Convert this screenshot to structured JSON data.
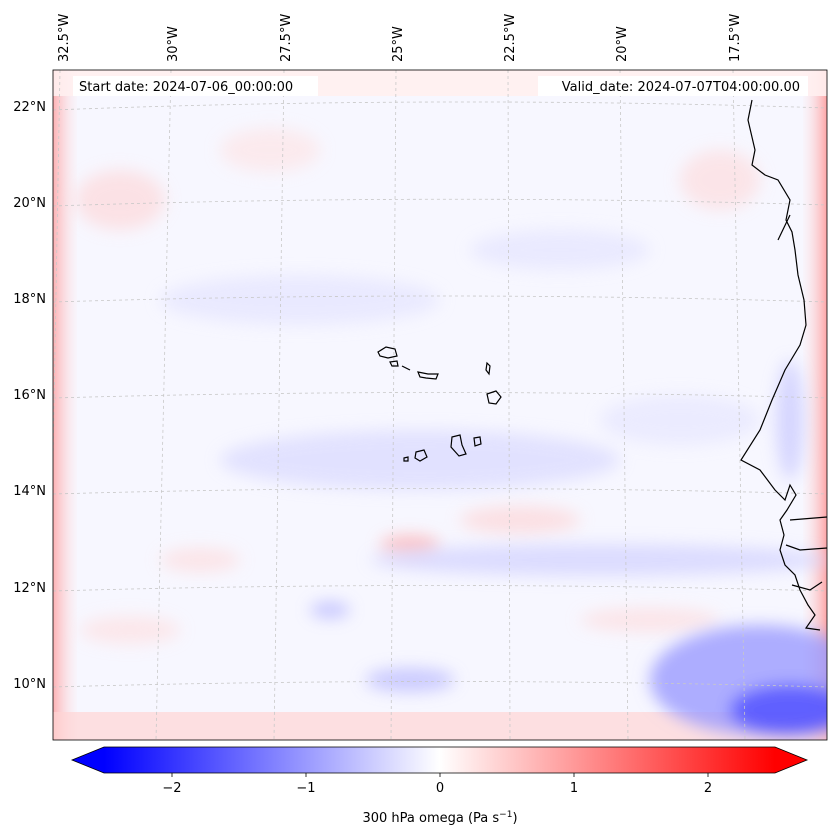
{
  "header": {
    "start_date": "Start date: 2024-07-06_00:00:00",
    "valid_date": "Valid_date: 2024-07-07T04:00:00.00"
  },
  "longitude_labels": [
    "32.5°W",
    "30°W",
    "27.5°W",
    "25°W",
    "22.5°W",
    "20°W",
    "17.5°W"
  ],
  "latitude_labels": [
    "22°N",
    "20°N",
    "18°N",
    "16°N",
    "14°N",
    "12°N",
    "10°N"
  ],
  "colorbar": {
    "label": "300 hPa omega (Pa s",
    "label_exponent": "−1",
    "label_close": ")",
    "ticks": [
      "−2",
      "−1",
      "0",
      "1",
      "2"
    ],
    "range": [
      -2.6,
      2.6
    ],
    "colors": {
      "min": "#0000ff",
      "mid": "#ffffff",
      "max": "#ff0000"
    }
  },
  "colors": {
    "coastline": "#000000",
    "gridline": "#c8c8c8"
  }
}
